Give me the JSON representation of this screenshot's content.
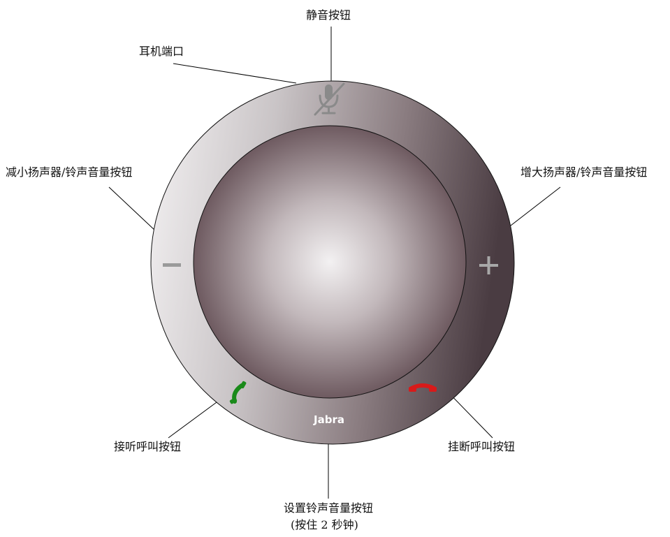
{
  "labels": {
    "mute_button": "静音按钮",
    "headset_port": "耳机端口",
    "volume_down": "减小扬声器/铃声音量按钮",
    "volume_up": "增大扬声器/铃声音量按钮",
    "answer_call": "接听呼叫按钮",
    "end_call": "挂断呼叫按钮",
    "ringtone_volume": "设置铃声音量按钮",
    "ringtone_volume_hint": "(按住 2 秒钟)"
  },
  "device": {
    "brand": "Jabra",
    "icons": {
      "mute": "muted-microphone-icon",
      "minus": "minus-icon",
      "plus": "plus-icon",
      "answer": "green-phone-handset-icon",
      "hangup": "red-phone-handset-icon"
    },
    "colors": {
      "answer": "#1a8a1a",
      "hangup": "#d81a1a",
      "ring_dark": "#4a3c42",
      "ring_light": "#f4f2f3",
      "speaker_center": "#f3f1f2",
      "speaker_edge": "#6e5a60"
    }
  }
}
